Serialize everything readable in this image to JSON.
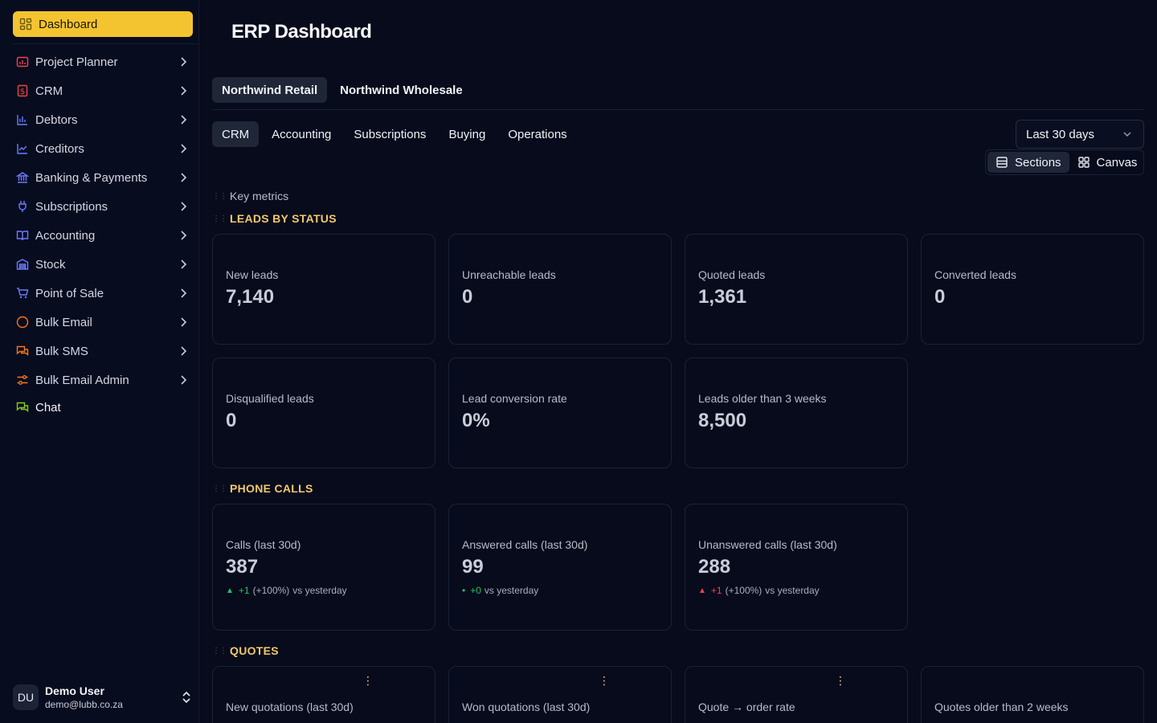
{
  "sidebar": {
    "active": {
      "label": "Dashboard",
      "icon": "dashboard-icon"
    },
    "items": [
      {
        "label": "Project Planner",
        "icon": "calendar-chart-icon",
        "color": "#ef4444",
        "chevron": true
      },
      {
        "label": "CRM",
        "icon": "dollar-icon",
        "color": "#ef4444",
        "chevron": true
      },
      {
        "label": "Debtors",
        "icon": "bar-chart-icon",
        "color": "#6b7cff",
        "chevron": true
      },
      {
        "label": "Creditors",
        "icon": "line-chart-icon",
        "color": "#6b7cff",
        "chevron": true
      },
      {
        "label": "Banking & Payments",
        "icon": "bank-icon",
        "color": "#6b7cff",
        "chevron": true
      },
      {
        "label": "Subscriptions",
        "icon": "plug-icon",
        "color": "#6b7cff",
        "chevron": true
      },
      {
        "label": "Accounting",
        "icon": "book-icon",
        "color": "#6b7cff",
        "chevron": true
      },
      {
        "label": "Stock",
        "icon": "warehouse-icon",
        "color": "#6b7cff",
        "chevron": true
      },
      {
        "label": "Point of Sale",
        "icon": "cart-icon",
        "color": "#6b7cff",
        "chevron": true
      },
      {
        "label": "Bulk Email",
        "icon": "circle-icon",
        "color": "#f97316",
        "chevron": true
      },
      {
        "label": "Bulk SMS",
        "icon": "chat-bubbles-icon",
        "color": "#f97316",
        "chevron": true
      },
      {
        "label": "Bulk Email Admin",
        "icon": "sliders-icon",
        "color": "#f97316",
        "chevron": true
      },
      {
        "label": "Chat",
        "icon": "chat-icon",
        "color": "#84cc16",
        "chevron": false
      }
    ],
    "user": {
      "initials": "DU",
      "name": "Demo User",
      "email": "demo@lubb.co.za"
    }
  },
  "header": {
    "title": "ERP Dashboard"
  },
  "company_tabs": [
    "Northwind Retail",
    "Northwind Wholesale"
  ],
  "module_tabs": [
    "CRM",
    "Accounting",
    "Subscriptions",
    "Buying",
    "Operations"
  ],
  "date_range": "Last 30 days",
  "view_toggle": {
    "sections": "Sections",
    "canvas": "Canvas"
  },
  "sections": {
    "key_metrics": "Key metrics",
    "leads_by_status": "LEADS BY STATUS",
    "phone_calls": "PHONE CALLS",
    "quotes": "QUOTES"
  },
  "leads": [
    {
      "label": "New leads",
      "value": "7,140"
    },
    {
      "label": "Unreachable leads",
      "value": "0"
    },
    {
      "label": "Quoted leads",
      "value": "1,361"
    },
    {
      "label": "Converted leads",
      "value": "0"
    },
    {
      "label": "Disqualified leads",
      "value": "0"
    },
    {
      "label": "Lead conversion rate",
      "value": "0%"
    },
    {
      "label": "Leads older than 3 weeks",
      "value": "8,500"
    }
  ],
  "calls": [
    {
      "label": "Calls (last 30d)",
      "value": "387",
      "marker": "▲",
      "change": "+1",
      "pct": "(+100%)",
      "suffix": "vs yesterday"
    },
    {
      "label": "Answered calls (last 30d)",
      "value": "99",
      "marker": "•",
      "change": "+0",
      "pct": "",
      "suffix": "vs yesterday"
    },
    {
      "label": "Unanswered calls (last 30d)",
      "value": "288",
      "marker": "▲",
      "change": "+1",
      "pct": "(+100%)",
      "suffix": "vs yesterday"
    }
  ],
  "quotes": [
    {
      "label": "New quotations (last 30d)"
    },
    {
      "label": "Won quotations (last 30d)"
    },
    {
      "label": "Quote → order rate"
    },
    {
      "label": "Quotes older than 2 weeks"
    }
  ],
  "colors": {
    "accent": "#f4c430",
    "section_heading": "#f2c86a",
    "positive": "#22c55e",
    "negative": "#ef4444"
  }
}
